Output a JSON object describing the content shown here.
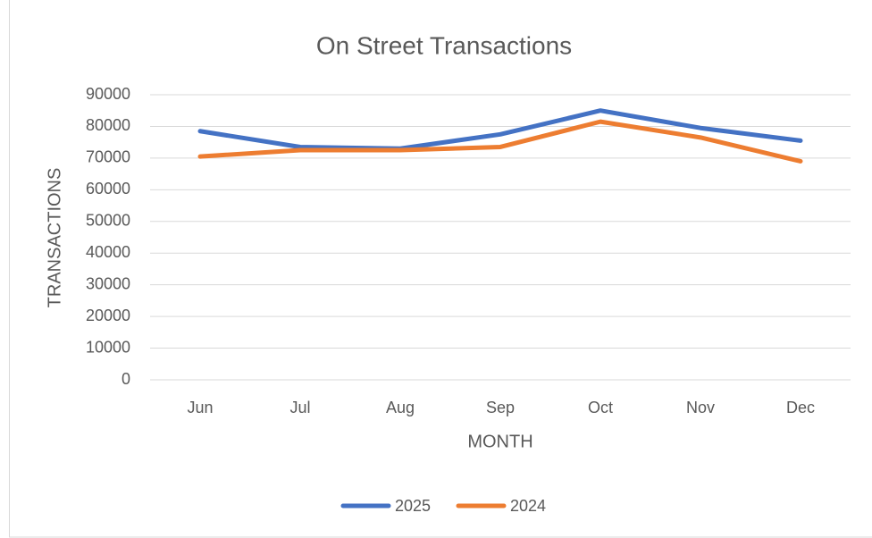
{
  "chart_data": {
    "type": "line",
    "title": "On Street Transactions",
    "x_label": "MONTH",
    "y_label": "TRANSACTIONS",
    "categories": [
      "Jun",
      "Jul",
      "Aug",
      "Sep",
      "Oct",
      "Nov",
      "Dec"
    ],
    "series": [
      {
        "name": "2025",
        "color": "#4472c4",
        "values": [
          78500,
          73500,
          73000,
          77500,
          85000,
          79500,
          75500
        ]
      },
      {
        "name": "2024",
        "color": "#ed7d31",
        "values": [
          70500,
          72500,
          72500,
          73500,
          81500,
          76500,
          69000
        ]
      }
    ],
    "ylim": [
      0,
      90000
    ],
    "yticks": [
      0,
      10000,
      20000,
      30000,
      40000,
      50000,
      60000,
      70000,
      80000,
      90000
    ],
    "grid": true,
    "legend": "bottom"
  }
}
